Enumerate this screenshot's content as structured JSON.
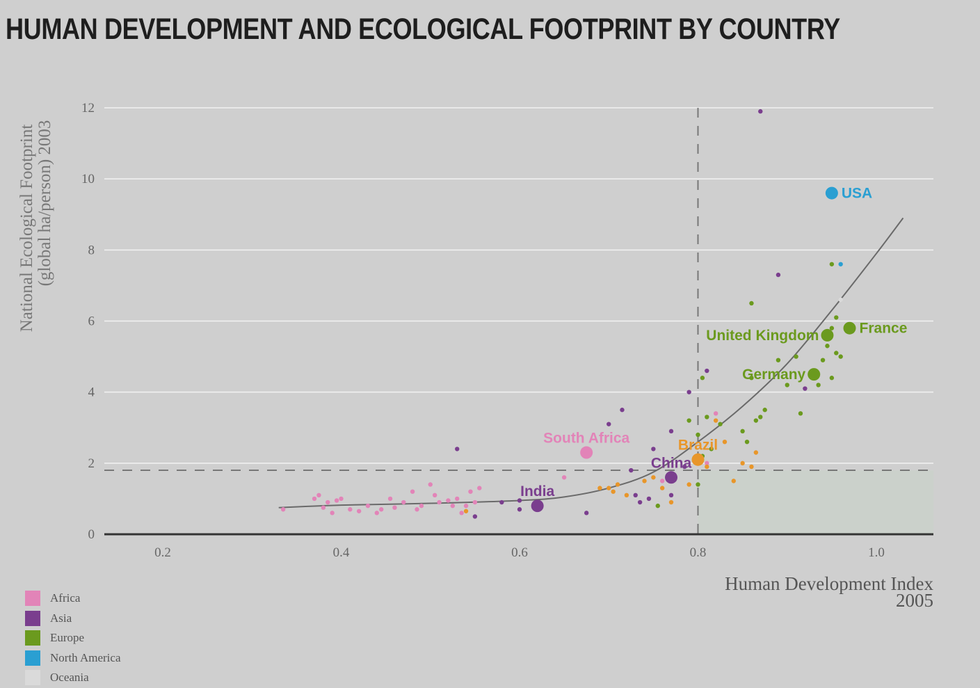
{
  "chart_data": {
    "type": "scatter",
    "title": "HUMAN DEVELOPMENT AND ECOLOGICAL FOOTPRINT BY COUNTRY",
    "xlabel": "Human Development Index",
    "xlabel_sub": "2005",
    "ylabel": "National Ecological Footprint",
    "ylabel_sub": "(global ha/person) 2003",
    "xlim": [
      0.13,
      1.06
    ],
    "ylim": [
      0,
      12
    ],
    "x_ticks": [
      0.2,
      0.4,
      0.6,
      0.8,
      1.0
    ],
    "x_tick_labels": [
      "0.2",
      "0.4",
      "0.6",
      "0.8",
      "1.0"
    ],
    "y_ticks": [
      0,
      2,
      4,
      6,
      8,
      10,
      12
    ],
    "y_tick_labels": [
      "0",
      "2",
      "4",
      "6",
      "8",
      "10",
      "12"
    ],
    "reference_lines": {
      "hdi_threshold": 0.8,
      "biocapacity_per_person": 1.8
    },
    "trend_curve": [
      [
        0.33,
        0.75
      ],
      [
        0.4,
        0.82
      ],
      [
        0.5,
        0.87
      ],
      [
        0.6,
        0.95
      ],
      [
        0.65,
        1.05
      ],
      [
        0.7,
        1.3
      ],
      [
        0.75,
        1.75
      ],
      [
        0.8,
        2.6
      ],
      [
        0.85,
        3.6
      ],
      [
        0.9,
        4.8
      ],
      [
        0.95,
        6.3
      ],
      [
        1.0,
        7.9
      ],
      [
        1.03,
        8.9
      ]
    ],
    "colors": {
      "Africa": "#e284b8",
      "Asia": "#7a3e8e",
      "Europe": "#6b9a1e",
      "North America": "#2a9fd2",
      "Oceania": "#dadada",
      "Latin America": "#e8962a"
    },
    "legend": [
      {
        "name": "Africa",
        "color": "#e284b8"
      },
      {
        "name": "Asia",
        "color": "#7a3e8e"
      },
      {
        "name": "Europe",
        "color": "#6b9a1e"
      },
      {
        "name": "North America",
        "color": "#2a9fd2"
      },
      {
        "name": "Oceania",
        "color": "#dadada"
      }
    ],
    "highlighted": [
      {
        "label": "USA",
        "region": "North America",
        "x": 0.95,
        "y": 9.6,
        "label_pos": "right"
      },
      {
        "label": "France",
        "region": "Europe",
        "x": 0.97,
        "y": 5.8,
        "label_pos": "right"
      },
      {
        "label": "United Kingdom",
        "region": "Europe",
        "x": 0.945,
        "y": 5.6,
        "label_pos": "left"
      },
      {
        "label": "Germany",
        "region": "Europe",
        "x": 0.93,
        "y": 4.5,
        "label_pos": "left"
      },
      {
        "label": "South Africa",
        "region": "Africa",
        "x": 0.675,
        "y": 2.3,
        "label_pos": "above"
      },
      {
        "label": "Brazil",
        "region": "Latin America",
        "x": 0.8,
        "y": 2.1,
        "label_pos": "above"
      },
      {
        "label": "China",
        "region": "Asia",
        "x": 0.77,
        "y": 1.6,
        "label_pos": "above"
      },
      {
        "label": "India",
        "region": "Asia",
        "x": 0.62,
        "y": 0.8,
        "label_pos": "above"
      }
    ],
    "points": [
      {
        "region": "Africa",
        "x": 0.335,
        "y": 0.7
      },
      {
        "region": "Africa",
        "x": 0.37,
        "y": 1.0
      },
      {
        "region": "Africa",
        "x": 0.375,
        "y": 1.1
      },
      {
        "region": "Africa",
        "x": 0.38,
        "y": 0.75
      },
      {
        "region": "Africa",
        "x": 0.385,
        "y": 0.9
      },
      {
        "region": "Africa",
        "x": 0.39,
        "y": 0.6
      },
      {
        "region": "Africa",
        "x": 0.395,
        "y": 0.95
      },
      {
        "region": "Africa",
        "x": 0.4,
        "y": 1.0
      },
      {
        "region": "Africa",
        "x": 0.41,
        "y": 0.7
      },
      {
        "region": "Africa",
        "x": 0.42,
        "y": 0.65
      },
      {
        "region": "Africa",
        "x": 0.43,
        "y": 0.8
      },
      {
        "region": "Africa",
        "x": 0.44,
        "y": 0.6
      },
      {
        "region": "Africa",
        "x": 0.445,
        "y": 0.7
      },
      {
        "region": "Africa",
        "x": 0.455,
        "y": 1.0
      },
      {
        "region": "Africa",
        "x": 0.46,
        "y": 0.75
      },
      {
        "region": "Africa",
        "x": 0.47,
        "y": 0.9
      },
      {
        "region": "Africa",
        "x": 0.48,
        "y": 1.2
      },
      {
        "region": "Africa",
        "x": 0.485,
        "y": 0.7
      },
      {
        "region": "Africa",
        "x": 0.49,
        "y": 0.8
      },
      {
        "region": "Africa",
        "x": 0.5,
        "y": 1.4
      },
      {
        "region": "Africa",
        "x": 0.505,
        "y": 1.1
      },
      {
        "region": "Africa",
        "x": 0.51,
        "y": 0.9
      },
      {
        "region": "Africa",
        "x": 0.52,
        "y": 0.95
      },
      {
        "region": "Africa",
        "x": 0.525,
        "y": 0.8
      },
      {
        "region": "Africa",
        "x": 0.53,
        "y": 1.0
      },
      {
        "region": "Africa",
        "x": 0.535,
        "y": 0.6
      },
      {
        "region": "Africa",
        "x": 0.54,
        "y": 0.8
      },
      {
        "region": "Africa",
        "x": 0.545,
        "y": 1.2
      },
      {
        "region": "Africa",
        "x": 0.55,
        "y": 0.9
      },
      {
        "region": "Africa",
        "x": 0.555,
        "y": 1.3
      },
      {
        "region": "Africa",
        "x": 0.65,
        "y": 1.6
      },
      {
        "region": "Africa",
        "x": 0.76,
        "y": 1.5
      },
      {
        "region": "Africa",
        "x": 0.82,
        "y": 3.4
      },
      {
        "region": "Africa",
        "x": 0.81,
        "y": 2.0
      },
      {
        "region": "Asia",
        "x": 0.53,
        "y": 2.4
      },
      {
        "region": "Asia",
        "x": 0.55,
        "y": 0.5
      },
      {
        "region": "Asia",
        "x": 0.58,
        "y": 0.9
      },
      {
        "region": "Asia",
        "x": 0.6,
        "y": 0.7
      },
      {
        "region": "Asia",
        "x": 0.6,
        "y": 0.95
      },
      {
        "region": "Asia",
        "x": 0.675,
        "y": 0.6
      },
      {
        "region": "Asia",
        "x": 0.7,
        "y": 3.1
      },
      {
        "region": "Asia",
        "x": 0.715,
        "y": 3.5
      },
      {
        "region": "Asia",
        "x": 0.725,
        "y": 1.8
      },
      {
        "region": "Asia",
        "x": 0.73,
        "y": 1.1
      },
      {
        "region": "Asia",
        "x": 0.735,
        "y": 0.9
      },
      {
        "region": "Asia",
        "x": 0.745,
        "y": 1.0
      },
      {
        "region": "Asia",
        "x": 0.75,
        "y": 2.4
      },
      {
        "region": "Asia",
        "x": 0.77,
        "y": 2.9
      },
      {
        "region": "Asia",
        "x": 0.785,
        "y": 1.9
      },
      {
        "region": "Asia",
        "x": 0.79,
        "y": 4.0
      },
      {
        "region": "Asia",
        "x": 0.81,
        "y": 4.6
      },
      {
        "region": "Asia",
        "x": 0.87,
        "y": 11.9
      },
      {
        "region": "Asia",
        "x": 0.89,
        "y": 7.3
      },
      {
        "region": "Asia",
        "x": 0.92,
        "y": 4.1
      },
      {
        "region": "Asia",
        "x": 0.77,
        "y": 1.1
      },
      {
        "region": "Latin America",
        "x": 0.54,
        "y": 0.65
      },
      {
        "region": "Latin America",
        "x": 0.69,
        "y": 1.3
      },
      {
        "region": "Latin America",
        "x": 0.7,
        "y": 1.3
      },
      {
        "region": "Latin America",
        "x": 0.705,
        "y": 1.2
      },
      {
        "region": "Latin America",
        "x": 0.71,
        "y": 1.4
      },
      {
        "region": "Latin America",
        "x": 0.72,
        "y": 1.1
      },
      {
        "region": "Latin America",
        "x": 0.74,
        "y": 1.5
      },
      {
        "region": "Latin America",
        "x": 0.75,
        "y": 1.6
      },
      {
        "region": "Latin America",
        "x": 0.76,
        "y": 1.3
      },
      {
        "region": "Latin America",
        "x": 0.77,
        "y": 0.9
      },
      {
        "region": "Latin America",
        "x": 0.79,
        "y": 1.4
      },
      {
        "region": "Latin America",
        "x": 0.81,
        "y": 1.9
      },
      {
        "region": "Latin America",
        "x": 0.82,
        "y": 3.2
      },
      {
        "region": "Latin America",
        "x": 0.83,
        "y": 2.6
      },
      {
        "region": "Latin America",
        "x": 0.84,
        "y": 1.5
      },
      {
        "region": "Latin America",
        "x": 0.85,
        "y": 2.0
      },
      {
        "region": "Latin America",
        "x": 0.86,
        "y": 1.9
      },
      {
        "region": "Latin America",
        "x": 0.865,
        "y": 2.3
      },
      {
        "region": "Europe",
        "x": 0.755,
        "y": 0.8
      },
      {
        "region": "Europe",
        "x": 0.79,
        "y": 3.2
      },
      {
        "region": "Europe",
        "x": 0.8,
        "y": 2.8
      },
      {
        "region": "Europe",
        "x": 0.8,
        "y": 1.4
      },
      {
        "region": "Europe",
        "x": 0.805,
        "y": 4.4
      },
      {
        "region": "Europe",
        "x": 0.805,
        "y": 2.2
      },
      {
        "region": "Europe",
        "x": 0.81,
        "y": 3.3
      },
      {
        "region": "Europe",
        "x": 0.815,
        "y": 2.4
      },
      {
        "region": "Europe",
        "x": 0.825,
        "y": 3.1
      },
      {
        "region": "Europe",
        "x": 0.85,
        "y": 2.9
      },
      {
        "region": "Europe",
        "x": 0.855,
        "y": 2.6
      },
      {
        "region": "Europe",
        "x": 0.86,
        "y": 6.5
      },
      {
        "region": "Europe",
        "x": 0.86,
        "y": 4.4
      },
      {
        "region": "Europe",
        "x": 0.865,
        "y": 3.2
      },
      {
        "region": "Europe",
        "x": 0.87,
        "y": 3.3
      },
      {
        "region": "Europe",
        "x": 0.875,
        "y": 3.5
      },
      {
        "region": "Europe",
        "x": 0.89,
        "y": 4.9
      },
      {
        "region": "Europe",
        "x": 0.9,
        "y": 4.2
      },
      {
        "region": "Europe",
        "x": 0.91,
        "y": 5.0
      },
      {
        "region": "Europe",
        "x": 0.915,
        "y": 3.4
      },
      {
        "region": "Europe",
        "x": 0.935,
        "y": 4.2
      },
      {
        "region": "Europe",
        "x": 0.94,
        "y": 4.9
      },
      {
        "region": "Europe",
        "x": 0.945,
        "y": 5.3
      },
      {
        "region": "Europe",
        "x": 0.95,
        "y": 7.6
      },
      {
        "region": "Europe",
        "x": 0.95,
        "y": 5.8
      },
      {
        "region": "Europe",
        "x": 0.95,
        "y": 4.4
      },
      {
        "region": "Europe",
        "x": 0.955,
        "y": 5.1
      },
      {
        "region": "Europe",
        "x": 0.96,
        "y": 5.0
      },
      {
        "region": "Europe",
        "x": 0.955,
        "y": 6.1
      },
      {
        "region": "North America",
        "x": 0.96,
        "y": 7.6
      },
      {
        "region": "Oceania",
        "x": 0.96,
        "y": 6.6
      }
    ]
  }
}
